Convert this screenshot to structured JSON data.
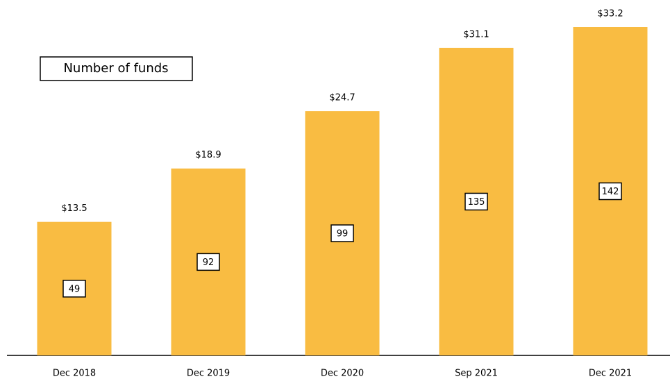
{
  "chart_data": {
    "type": "bar",
    "categories": [
      "Dec 2018",
      "Dec 2019",
      "Dec 2020",
      "Sep 2021",
      "Dec 2021"
    ],
    "values": [
      13.5,
      18.9,
      24.7,
      31.1,
      33.2
    ],
    "value_labels": [
      "$13.5",
      "$18.9",
      "$24.7",
      "$31.1",
      "$33.2"
    ],
    "color": "#f9bc42",
    "fund_counts": {
      "name": "Number of funds",
      "values": [
        49,
        92,
        99,
        135,
        142
      ]
    }
  }
}
